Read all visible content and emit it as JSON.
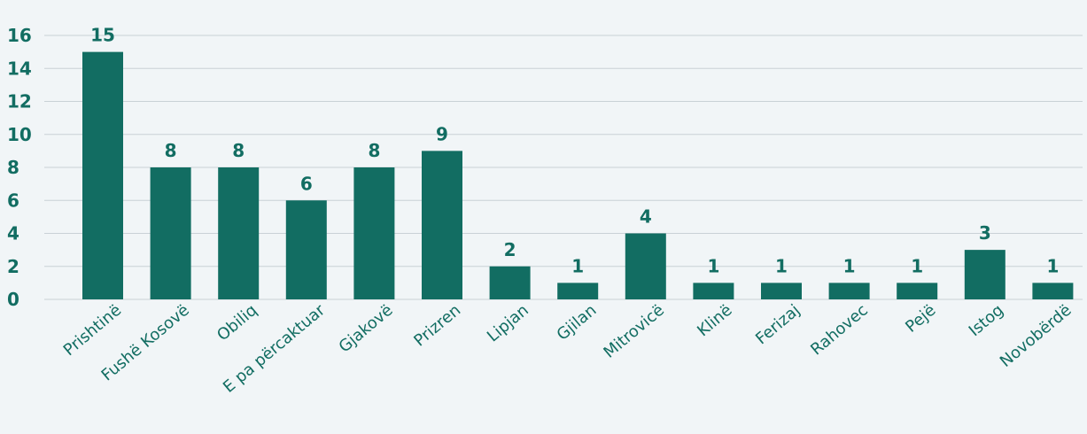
{
  "chart_data": {
    "type": "bar",
    "categories": [
      "Prishtinë",
      "Fushë Kosovë",
      "Obiliq",
      "E pa përcaktuar",
      "Gjakovë",
      "Prizren",
      "Lipjan",
      "Gjilan",
      "Mitrovicë",
      "Klinë",
      "Ferizaj",
      "Rahovec",
      "Pejë",
      "Istog",
      "Novobërdë"
    ],
    "values": [
      15,
      8,
      8,
      6,
      8,
      9,
      2,
      1,
      4,
      1,
      1,
      1,
      1,
      3,
      1
    ],
    "data_labels": [
      "15",
      "8",
      "8",
      "6",
      "8",
      "9",
      "2",
      "1",
      "4",
      "1",
      "1",
      "1",
      "1",
      "3",
      "1"
    ],
    "yticks": [
      0,
      2,
      4,
      6,
      8,
      10,
      12,
      14,
      16
    ],
    "ylim": [
      0,
      16
    ],
    "grid": true,
    "legend": "none",
    "colors": {
      "bar": "#126d62",
      "text": "#126d62",
      "grid": "#c9d1d6",
      "background": "#f1f5f7"
    }
  }
}
